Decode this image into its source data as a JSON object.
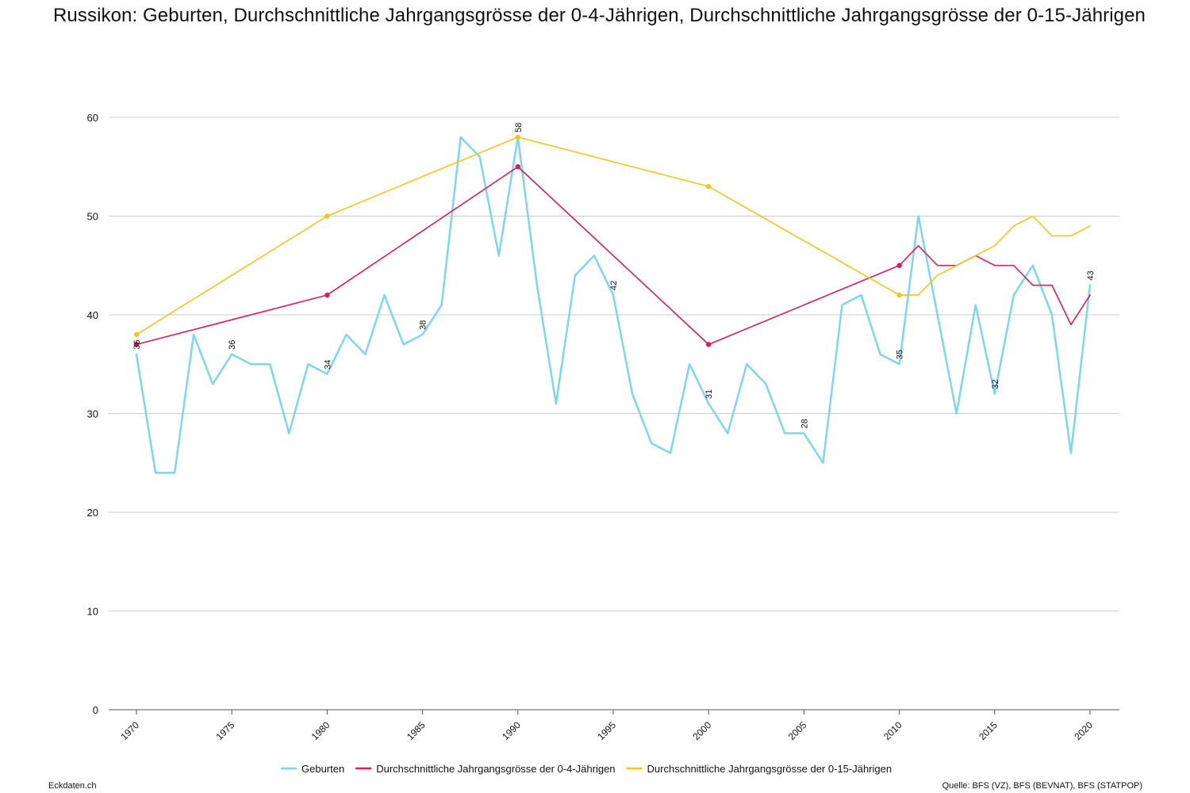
{
  "title": "Russikon: Geburten, Durchschnittliche Jahrgangsgrösse der 0-4-Jährigen, Durchschnittliche Jahrgangsgrösse der 0-15-Jährigen",
  "footer": {
    "brand": "Eckdaten.ch",
    "source": "Quelle: BFS (VZ), BFS (BEVNAT), BFS (STATPOP)"
  },
  "chart_data": {
    "type": "line",
    "ylim": [
      0,
      60
    ],
    "yticks": [
      "0",
      "10",
      "20",
      "30",
      "40",
      "50",
      "60"
    ],
    "xlim": [
      1970,
      2020
    ],
    "xticks": [
      "1970",
      "1975",
      "1980",
      "1985",
      "1990",
      "1995",
      "2000",
      "2005",
      "2010",
      "2015",
      "2020"
    ],
    "grid": true,
    "legend_position": "bottom",
    "series": [
      {
        "name": "Geburten",
        "color": "#7dd6f0",
        "x": [
          1970,
          1971,
          1972,
          1973,
          1974,
          1975,
          1976,
          1977,
          1978,
          1979,
          1980,
          1981,
          1982,
          1983,
          1984,
          1985,
          1986,
          1987,
          1988,
          1989,
          1990,
          1991,
          1992,
          1993,
          1994,
          1995,
          1996,
          1997,
          1998,
          1999,
          2000,
          2001,
          2002,
          2003,
          2004,
          2005,
          2006,
          2007,
          2008,
          2009,
          2010,
          2011,
          2012,
          2013,
          2014,
          2015,
          2016,
          2017,
          2018,
          2019,
          2020
        ],
        "y": [
          36,
          24,
          24,
          38,
          33,
          36,
          35,
          35,
          28,
          35,
          34,
          38,
          36,
          42,
          37,
          38,
          41,
          58,
          56,
          46,
          58,
          43,
          31,
          44,
          46,
          42,
          32,
          27,
          26,
          35,
          31,
          28,
          35,
          33,
          28,
          28,
          25,
          41,
          42,
          36,
          35,
          50,
          40,
          30,
          41,
          32,
          42,
          45,
          40,
          26,
          43
        ],
        "labels": [
          {
            "x": 1970,
            "y": 36,
            "text": "36"
          },
          {
            "x": 1975,
            "y": 36,
            "text": "36"
          },
          {
            "x": 1980,
            "y": 34,
            "text": "34"
          },
          {
            "x": 1985,
            "y": 38,
            "text": "38"
          },
          {
            "x": 1990,
            "y": 58,
            "text": "58"
          },
          {
            "x": 1995,
            "y": 42,
            "text": "42"
          },
          {
            "x": 2000,
            "y": 31,
            "text": "31"
          },
          {
            "x": 2005,
            "y": 28,
            "text": "28"
          },
          {
            "x": 2010,
            "y": 35,
            "text": "35"
          },
          {
            "x": 2015,
            "y": 32,
            "text": "32"
          },
          {
            "x": 2020,
            "y": 43,
            "text": "43"
          }
        ]
      },
      {
        "name": "Durchschnittliche Jahrgangsgrösse der 0-4-Jährigen",
        "color": "#e0195a",
        "x": [
          1970,
          1980,
          1990,
          2000,
          2010,
          2011,
          2012,
          2013,
          2014,
          2015,
          2016,
          2017,
          2018,
          2019,
          2020
        ],
        "y": [
          37,
          42,
          55,
          37,
          45,
          47,
          45,
          45,
          46,
          45,
          45,
          43,
          43,
          39,
          42
        ],
        "markers": [
          1970,
          1980,
          1990,
          2000,
          2010
        ]
      },
      {
        "name": "Durchschnittliche Jahrgangsgrösse der 0-15-Jährigen",
        "color": "#f5c518",
        "x": [
          1970,
          1980,
          1990,
          2000,
          2010,
          2011,
          2012,
          2013,
          2014,
          2015,
          2016,
          2017,
          2018,
          2019,
          2020
        ],
        "y": [
          38,
          50,
          58,
          53,
          42,
          42,
          44,
          45,
          46,
          47,
          49,
          50,
          48,
          48,
          49
        ],
        "markers": [
          1970,
          1980,
          1990,
          2000,
          2010
        ]
      }
    ]
  }
}
